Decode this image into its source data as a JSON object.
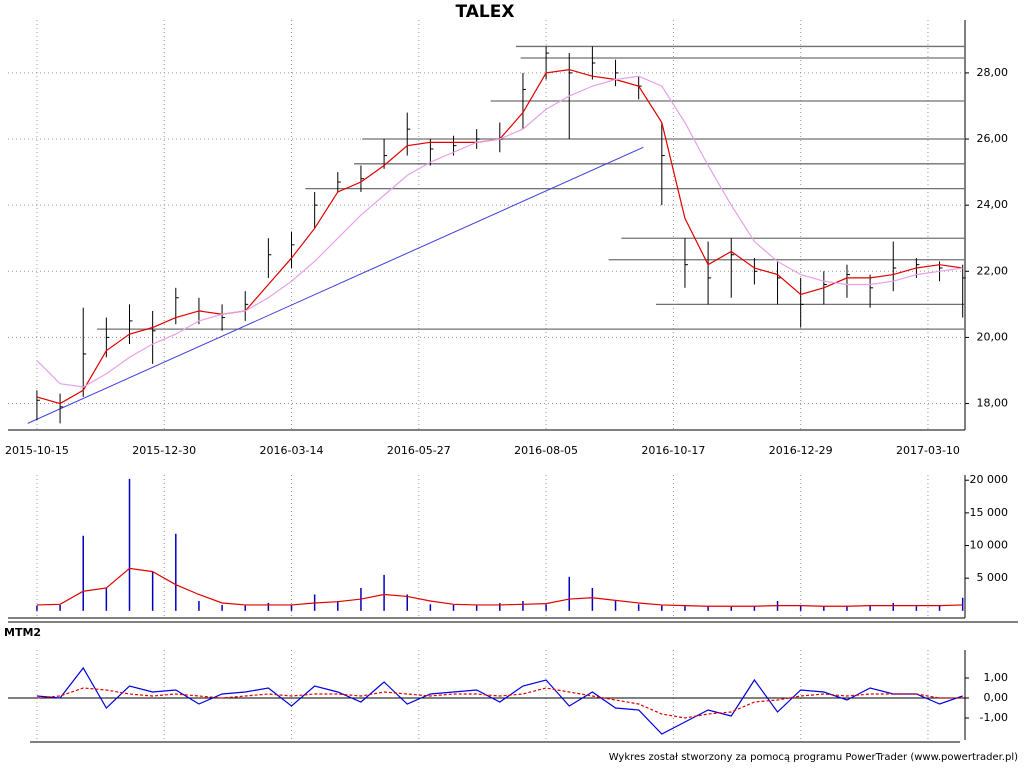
{
  "chart_data": [
    {
      "type": "price",
      "title": "TALEX",
      "x": [
        0,
        2,
        4,
        6,
        8,
        10,
        12,
        14,
        16,
        18,
        20,
        22,
        24,
        26,
        28,
        30,
        32,
        34,
        36,
        38,
        40,
        42,
        44,
        46,
        48,
        50,
        52,
        54,
        56,
        58,
        60,
        62,
        64,
        66,
        68,
        70,
        72,
        74,
        76,
        78,
        80
      ],
      "xlim": [
        -2.5,
        80.2
      ],
      "xticks": [
        {
          "value": 0,
          "label": "2015-10-15"
        },
        {
          "value": 11,
          "label": "2015-12-30"
        },
        {
          "value": 22,
          "label": "2016-03-14"
        },
        {
          "value": 33,
          "label": "2016-05-27"
        },
        {
          "value": 44,
          "label": "2016-08-05"
        },
        {
          "value": 55,
          "label": "2016-10-17"
        },
        {
          "value": 66,
          "label": "2016-12-29"
        },
        {
          "value": 77,
          "label": "2017-03-10"
        }
      ],
      "ylim": [
        17.2,
        29.6
      ],
      "yticks": [
        {
          "value": 18,
          "label": "18,00"
        },
        {
          "value": 20,
          "label": "20,00"
        },
        {
          "value": 22,
          "label": "22,00"
        },
        {
          "value": 24,
          "label": "24,00"
        },
        {
          "value": 26,
          "label": "26,00"
        },
        {
          "value": 28,
          "label": "28,00"
        }
      ],
      "grid": true,
      "bar_color": "#000000",
      "high": [
        18.4,
        18.3,
        20.9,
        20.6,
        21.0,
        20.8,
        21.5,
        21.2,
        21.0,
        21.4,
        23.0,
        23.2,
        24.4,
        25.0,
        25.2,
        26.0,
        26.8,
        26.0,
        26.1,
        26.3,
        26.5,
        28.0,
        28.8,
        28.6,
        28.8,
        28.4,
        27.9,
        26.5,
        23.0,
        22.9,
        23.0,
        22.4,
        22.3,
        21.8,
        22.0,
        22.2,
        21.9,
        22.9,
        22.4,
        22.3,
        22.2
      ],
      "low": [
        17.5,
        17.4,
        18.2,
        19.4,
        19.8,
        19.2,
        20.4,
        20.4,
        20.2,
        20.5,
        21.8,
        22.1,
        23.3,
        24.4,
        24.4,
        25.1,
        25.5,
        25.2,
        25.5,
        25.7,
        25.6,
        26.3,
        27.8,
        26.0,
        27.8,
        27.6,
        27.2,
        24.0,
        21.5,
        21.0,
        21.2,
        21.6,
        21.0,
        20.3,
        21.0,
        21.2,
        20.9,
        21.4,
        21.8,
        21.7,
        20.6
      ],
      "close": [
        18.1,
        17.9,
        19.5,
        20.0,
        20.5,
        20.2,
        21.2,
        20.8,
        20.6,
        21.0,
        22.5,
        22.8,
        24.0,
        24.7,
        24.8,
        25.5,
        26.3,
        25.7,
        25.8,
        26.0,
        26.0,
        27.5,
        28.6,
        28.0,
        28.3,
        28.0,
        27.6,
        25.5,
        22.2,
        21.8,
        22.5,
        22.0,
        21.8,
        21.0,
        21.6,
        21.9,
        21.5,
        22.1,
        22.2,
        22.1,
        21.8
      ],
      "series": [
        {
          "color": "#e00000",
          "values": [
            18.2,
            18.0,
            18.4,
            19.6,
            20.1,
            20.3,
            20.6,
            20.8,
            20.7,
            20.8,
            21.6,
            22.4,
            23.3,
            24.4,
            24.7,
            25.2,
            25.8,
            25.9,
            25.9,
            25.9,
            26.0,
            26.8,
            28.0,
            28.1,
            27.9,
            27.8,
            27.6,
            26.5,
            23.6,
            22.2,
            22.6,
            22.1,
            21.9,
            21.3,
            21.5,
            21.8,
            21.8,
            21.9,
            22.1,
            22.2,
            22.1
          ]
        },
        {
          "color": "#e8a0e8",
          "values": [
            19.3,
            18.6,
            18.5,
            18.9,
            19.4,
            19.8,
            20.1,
            20.5,
            20.7,
            20.8,
            21.2,
            21.7,
            22.3,
            23.0,
            23.7,
            24.3,
            24.9,
            25.3,
            25.6,
            25.9,
            26.0,
            26.3,
            26.9,
            27.3,
            27.6,
            27.8,
            27.9,
            27.6,
            26.5,
            25.2,
            24.0,
            22.9,
            22.3,
            21.9,
            21.7,
            21.6,
            21.6,
            21.7,
            21.9,
            22.0,
            22.1
          ]
        }
      ],
      "level_color": "#707070",
      "levels": [
        {
          "from": 41.4,
          "to": 80.2,
          "value": 28.8
        },
        {
          "from": 41.8,
          "to": 80.2,
          "value": 28.45
        },
        {
          "from": 39.2,
          "to": 80.2,
          "value": 27.15
        },
        {
          "from": 28.1,
          "to": 80.2,
          "value": 26.0
        },
        {
          "from": 27.4,
          "to": 80.2,
          "value": 25.25
        },
        {
          "from": 23.2,
          "to": 80.2,
          "value": 24.5
        },
        {
          "from": 50.5,
          "to": 80.2,
          "value": 23.0
        },
        {
          "from": 49.4,
          "to": 80.2,
          "value": 22.35
        },
        {
          "from": 53.5,
          "to": 80.2,
          "value": 21.0
        },
        {
          "from": 5.2,
          "to": 80.2,
          "value": 20.25
        }
      ],
      "trend_line": {
        "color": "#4040e0",
        "x": [
          -0.8,
          52.4
        ],
        "y": [
          17.4,
          25.75
        ]
      }
    },
    {
      "type": "bar",
      "color": "#0000c0",
      "values": [
        800,
        900,
        11500,
        3500,
        20200,
        6000,
        11800,
        1500,
        900,
        800,
        1200,
        900,
        2500,
        1500,
        3500,
        5500,
        2500,
        1000,
        900,
        800,
        1200,
        1500,
        1000,
        5200,
        3500,
        1500,
        1000,
        800,
        900,
        700,
        600,
        700,
        1500,
        900,
        700,
        800,
        900,
        1200,
        700,
        800,
        2000
      ],
      "ylim": [
        -1100,
        20800
      ],
      "yticks": [
        {
          "value": 5000,
          "label": "5 000"
        },
        {
          "value": 10000,
          "label": "10 000"
        },
        {
          "value": 15000,
          "label": "15 000"
        },
        {
          "value": 20000,
          "label": "20 000"
        }
      ],
      "series": [
        {
          "color": "#e00000",
          "values": [
            900,
            1000,
            3000,
            3500,
            6500,
            6000,
            4000,
            2500,
            1200,
            900,
            900,
            900,
            1200,
            1400,
            1800,
            2500,
            2200,
            1500,
            1000,
            900,
            900,
            1000,
            1100,
            1800,
            2000,
            1600,
            1200,
            900,
            800,
            700,
            700,
            700,
            800,
            800,
            700,
            700,
            800,
            800,
            800,
            800,
            900
          ]
        }
      ]
    },
    {
      "type": "line",
      "title": "MTM2",
      "ylim": [
        -2.1,
        2.4
      ],
      "yticks": [
        {
          "value": -1,
          "label": "-1,00"
        },
        {
          "value": 0,
          "label": "0,00"
        },
        {
          "value": 1,
          "label": "1,00"
        }
      ],
      "series": [
        {
          "color": "#0000e0",
          "values": [
            0.1,
            0.0,
            1.5,
            -0.5,
            0.6,
            0.3,
            0.4,
            -0.3,
            0.2,
            0.3,
            0.5,
            -0.4,
            0.6,
            0.3,
            -0.2,
            0.8,
            -0.3,
            0.2,
            0.3,
            0.4,
            -0.2,
            0.6,
            0.9,
            -0.4,
            0.3,
            -0.5,
            -0.6,
            -1.8,
            -1.2,
            -0.6,
            -0.9,
            0.9,
            -0.7,
            0.4,
            0.3,
            -0.1,
            0.5,
            0.2,
            0.2,
            -0.3,
            0.1
          ]
        },
        {
          "color": "#e00000",
          "dashed": true,
          "values": [
            0.0,
            0.1,
            0.5,
            0.4,
            0.2,
            0.1,
            0.2,
            0.1,
            0.0,
            0.1,
            0.2,
            0.1,
            0.2,
            0.2,
            0.1,
            0.3,
            0.2,
            0.1,
            0.2,
            0.2,
            0.1,
            0.2,
            0.5,
            0.3,
            0.1,
            -0.1,
            -0.3,
            -0.8,
            -1.0,
            -0.8,
            -0.7,
            -0.2,
            -0.1,
            0.1,
            0.2,
            0.1,
            0.2,
            0.2,
            0.2,
            0.0,
            0.0
          ]
        }
      ]
    }
  ],
  "footer": "Wykres został stworzony za pomocą programu PowerTrader (www.powertrader.pl)"
}
